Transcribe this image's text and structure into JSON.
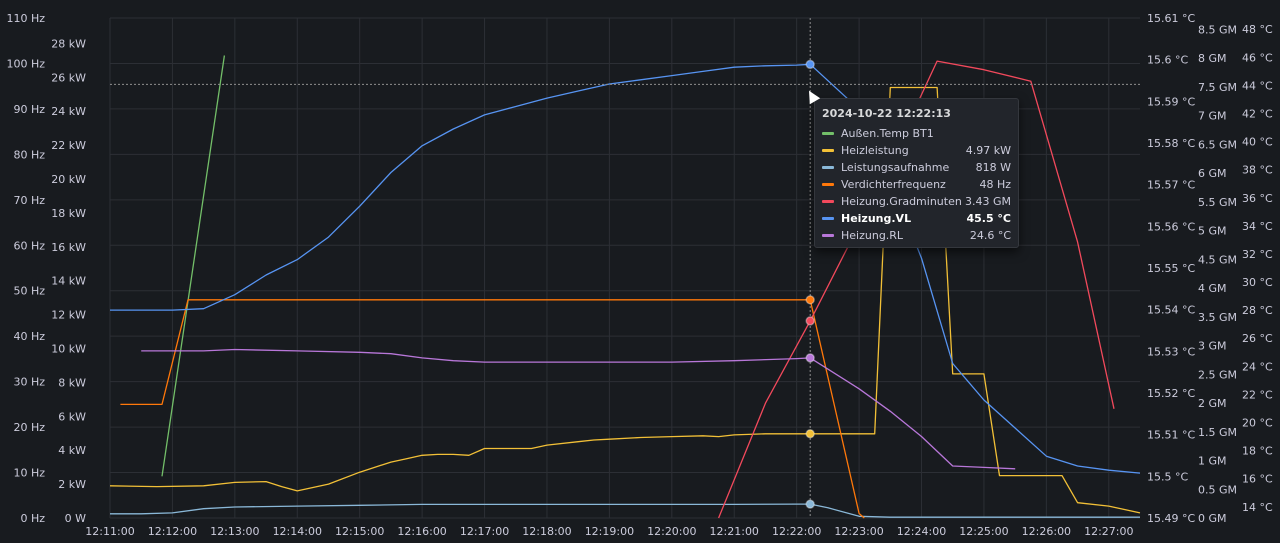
{
  "colors": {
    "background": "#181b1f",
    "grid": "#2c2f35",
    "axis_text": "#ccccdc",
    "aussen": "#73bf69",
    "heizleistung": "#f2c037",
    "leistung": "#8ab8d8",
    "verdichter": "#ff780a",
    "gradminuten": "#f2495c",
    "vl": "#5794f2",
    "rl": "#b877d9"
  },
  "chart_data": {
    "type": "line",
    "x_ticks": [
      "12:11:00",
      "12:12:00",
      "12:13:00",
      "12:14:00",
      "12:15:00",
      "12:16:00",
      "12:17:00",
      "12:18:00",
      "12:19:00",
      "12:20:00",
      "12:21:00",
      "12:22:00",
      "12:23:00",
      "12:24:00",
      "12:25:00",
      "12:26:00",
      "12:27:00"
    ],
    "xlim": [
      "12:11:00",
      "12:27:30"
    ],
    "grid": true,
    "cursor_time": "12:22:13",
    "axes": {
      "hz": {
        "label": "",
        "ticks": [
          "0 Hz",
          "10 Hz",
          "20 Hz",
          "30 Hz",
          "40 Hz",
          "50 Hz",
          "60 Hz",
          "70 Hz",
          "80 Hz",
          "90 Hz",
          "100 Hz",
          "110 Hz"
        ],
        "ylim": [
          0,
          110
        ]
      },
      "kw": {
        "label": "",
        "ticks": [
          "0 W",
          "2 kW",
          "4 kW",
          "6 kW",
          "8 kW",
          "10 kW",
          "12 kW",
          "14 kW",
          "16 kW",
          "18 kW",
          "20 kW",
          "22 kW",
          "24 kW",
          "26 kW",
          "28 kW"
        ],
        "ylim": [
          0,
          29.5
        ]
      },
      "c_small": {
        "label": "",
        "ticks": [
          "15.49 °C",
          "15.5 °C",
          "15.51 °C",
          "15.52 °C",
          "15.53 °C",
          "15.54 °C",
          "15.55 °C",
          "15.56 °C",
          "15.57 °C",
          "15.58 °C",
          "15.59 °C",
          "15.6 °C",
          "15.61 °C"
        ],
        "ylim": [
          15.49,
          15.61
        ]
      },
      "gm": {
        "label": "",
        "ticks": [
          "0 GM",
          "0.5 GM",
          "1 GM",
          "1.5 GM",
          "2 GM",
          "2.5 GM",
          "3 GM",
          "3.5 GM",
          "4 GM",
          "4.5 GM",
          "5 GM",
          "5.5 GM",
          "6 GM",
          "6.5 GM",
          "7 GM",
          "7.5 GM",
          "8 GM",
          "8.5 GM"
        ],
        "ylim": [
          0,
          8.7
        ]
      },
      "c_big": {
        "label": "",
        "ticks": [
          "14 °C",
          "16 °C",
          "18 °C",
          "20 °C",
          "22 °C",
          "24 °C",
          "26 °C",
          "28 °C",
          "30 °C",
          "32 °C",
          "34 °C",
          "36 °C",
          "38 °C",
          "40 °C",
          "42 °C",
          "44 °C",
          "46 °C",
          "48 °C"
        ],
        "ylim": [
          13.2,
          48.8
        ]
      }
    },
    "series": [
      {
        "name": "Außen.Temp BT1",
        "key": "aussen",
        "axis": "c_small",
        "x": [
          "12:11:50",
          "12:12:50"
        ],
        "y": [
          15.5,
          15.601
        ]
      },
      {
        "name": "Heizleistung",
        "key": "heizleistung",
        "axis": "kw",
        "x": [
          "12:11:00",
          "12:11:45",
          "12:12:30",
          "12:13:00",
          "12:13:30",
          "12:13:45",
          "12:14:00",
          "12:14:30",
          "12:15:00",
          "12:15:30",
          "12:15:45",
          "12:16:00",
          "12:16:15",
          "12:16:30",
          "12:16:45",
          "12:17:00",
          "12:17:30",
          "12:17:45",
          "12:18:00",
          "12:18:30",
          "12:18:45",
          "12:19:00",
          "12:19:30",
          "12:20:00",
          "12:20:30",
          "12:20:45",
          "12:21:00",
          "12:21:30",
          "12:22:00",
          "12:22:13",
          "12:22:30",
          "12:22:45",
          "12:23:00",
          "12:23:15",
          "12:23:30",
          "12:24:00",
          "12:24:15",
          "12:24:30",
          "12:24:45",
          "12:25:00",
          "12:25:15",
          "12:25:30",
          "12:26:00",
          "12:26:15",
          "12:26:30",
          "12:27:00",
          "12:27:30"
        ],
        "y": [
          1.9,
          1.85,
          1.9,
          2.1,
          2.15,
          1.85,
          1.6,
          2.0,
          2.7,
          3.3,
          3.5,
          3.7,
          3.75,
          3.75,
          3.7,
          4.1,
          4.1,
          4.1,
          4.3,
          4.5,
          4.6,
          4.65,
          4.75,
          4.8,
          4.85,
          4.8,
          4.9,
          4.97,
          4.97,
          4.97,
          4.97,
          4.97,
          4.97,
          4.97,
          25.4,
          25.4,
          25.4,
          8.5,
          8.5,
          8.5,
          2.5,
          2.5,
          2.5,
          2.5,
          0.9,
          0.7,
          0.3
        ]
      },
      {
        "name": "Leistungsaufnahme",
        "key": "leistung",
        "axis": "kw",
        "x": [
          "12:11:00",
          "12:11:30",
          "12:12:00",
          "12:12:30",
          "12:13:00",
          "12:14:00",
          "12:15:00",
          "12:16:00",
          "12:17:00",
          "12:18:00",
          "12:19:00",
          "12:20:00",
          "12:21:00",
          "12:22:00",
          "12:22:13",
          "12:22:30",
          "12:23:00",
          "12:23:30",
          "12:24:00",
          "12:24:30",
          "12:25:00",
          "12:25:30",
          "12:26:00",
          "12:26:30",
          "12:27:00",
          "12:27:30"
        ],
        "y": [
          0.25,
          0.25,
          0.3,
          0.55,
          0.65,
          0.7,
          0.75,
          0.8,
          0.8,
          0.8,
          0.8,
          0.8,
          0.8,
          0.818,
          0.818,
          0.6,
          0.1,
          0.05,
          0.05,
          0.05,
          0.05,
          0.05,
          0.05,
          0.05,
          0.05,
          0.05
        ]
      },
      {
        "name": "Verdichterfrequenz",
        "key": "verdichter",
        "axis": "hz",
        "x": [
          "12:11:10",
          "12:11:50",
          "12:12:15",
          "12:12:30",
          "12:13:00",
          "12:14:00",
          "12:15:00",
          "12:16:00",
          "12:17:00",
          "12:18:00",
          "12:19:00",
          "12:20:00",
          "12:21:00",
          "12:22:00",
          "12:22:13",
          "12:23:00",
          "12:23:05"
        ],
        "y": [
          25,
          25,
          48,
          48,
          48,
          48,
          48,
          48,
          48,
          48,
          48,
          48,
          48,
          48,
          48,
          1,
          0
        ]
      },
      {
        "name": "Heizung.Gradminuten",
        "key": "gradminuten",
        "axis": "gm",
        "x": [
          "12:20:45",
          "12:21:30",
          "12:22:13",
          "12:23:00",
          "12:23:30",
          "12:24:15",
          "12:25:00",
          "12:25:45",
          "12:26:30",
          "12:27:05"
        ],
        "y": [
          0,
          2.0,
          3.43,
          5.1,
          6.2,
          7.95,
          7.8,
          7.6,
          4.8,
          1.9
        ]
      },
      {
        "name": "Heizung.VL",
        "key": "vl",
        "axis": "c_big",
        "x": [
          "12:11:00",
          "12:11:30",
          "12:12:00",
          "12:12:30",
          "12:13:00",
          "12:13:30",
          "12:14:00",
          "12:14:30",
          "12:15:00",
          "12:15:30",
          "12:16:00",
          "12:16:30",
          "12:17:00",
          "12:17:30",
          "12:18:00",
          "12:18:30",
          "12:19:00",
          "12:19:30",
          "12:20:00",
          "12:20:30",
          "12:21:00",
          "12:21:30",
          "12:22:00",
          "12:22:13",
          "12:23:00",
          "12:23:30",
          "12:24:00",
          "12:24:30",
          "12:25:00",
          "12:25:30",
          "12:26:00",
          "12:26:30",
          "12:27:00",
          "12:27:30"
        ],
        "y": [
          28.0,
          28.0,
          28.0,
          28.1,
          29.1,
          30.5,
          31.6,
          33.2,
          35.4,
          37.8,
          39.7,
          40.9,
          41.9,
          42.5,
          43.1,
          43.6,
          44.1,
          44.4,
          44.7,
          45.0,
          45.3,
          45.4,
          45.45,
          45.5,
          42.3,
          37.3,
          31.7,
          24.2,
          21.6,
          19.6,
          17.6,
          16.9,
          16.6,
          16.4
        ]
      },
      {
        "name": "Heizung.RL",
        "key": "rl",
        "axis": "c_big",
        "x": [
          "12:11:30",
          "12:12:00",
          "12:12:30",
          "12:13:00",
          "12:14:00",
          "12:15:00",
          "12:15:30",
          "12:16:00",
          "12:16:30",
          "12:17:00",
          "12:17:30",
          "12:18:00",
          "12:19:00",
          "12:20:00",
          "12:21:00",
          "12:22:00",
          "12:22:13",
          "12:23:00",
          "12:23:30",
          "12:24:00",
          "12:24:30",
          "12:25:00",
          "12:25:30"
        ],
        "y": [
          25.1,
          25.1,
          25.1,
          25.2,
          25.1,
          25.0,
          24.9,
          24.6,
          24.4,
          24.3,
          24.3,
          24.3,
          24.3,
          24.3,
          24.4,
          24.55,
          24.6,
          22.4,
          20.8,
          19.0,
          16.9,
          16.8,
          16.7
        ]
      }
    ]
  },
  "tooltip": {
    "time": "2024-10-22 12:22:13",
    "rows": [
      {
        "label": "Außen.Temp BT1",
        "value": "",
        "key": "aussen"
      },
      {
        "label": "Heizleistung",
        "value": "4.97 kW",
        "key": "heizleistung"
      },
      {
        "label": "Leistungsaufnahme",
        "value": "818 W",
        "key": "leistung"
      },
      {
        "label": "Verdichterfrequenz",
        "value": "48 Hz",
        "key": "verdichter"
      },
      {
        "label": "Heizung.Gradminuten",
        "value": "3.43 GM",
        "key": "gradminuten"
      },
      {
        "label": "Heizung.VL",
        "value": "45.5 °C",
        "key": "vl",
        "highlight": true
      },
      {
        "label": "Heizung.RL",
        "value": "24.6 °C",
        "key": "rl"
      }
    ]
  }
}
